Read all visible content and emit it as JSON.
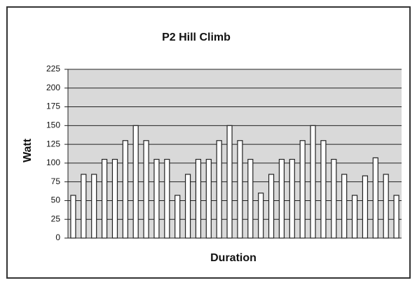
{
  "chart_data": {
    "type": "bar",
    "title": "P2 Hill Climb",
    "x_label": "Duration",
    "y_label": "Watt",
    "values": [
      57,
      85,
      85,
      105,
      105,
      130,
      150,
      130,
      105,
      105,
      57,
      85,
      105,
      105,
      130,
      150,
      130,
      105,
      60,
      85,
      105,
      105,
      130,
      150,
      130,
      105,
      85,
      57,
      83,
      107,
      85,
      57
    ],
    "color": "#ffffff",
    "ylim": [
      0,
      225
    ],
    "yticks": [
      0,
      25,
      50,
      75,
      100,
      125,
      150,
      175,
      200,
      225
    ],
    "grid": true
  }
}
